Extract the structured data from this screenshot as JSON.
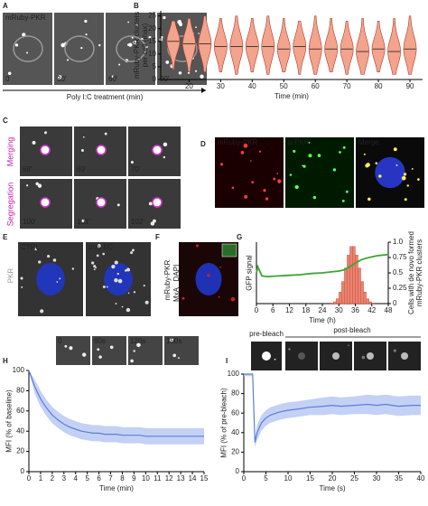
{
  "panels": {
    "a": {
      "label": "A",
      "channel": "mRuby-PKR",
      "times": [
        "0",
        "30'",
        "60'",
        "90'"
      ],
      "caption": "Poly I:C treatment (min)"
    },
    "c": {
      "label": "C",
      "rows": [
        {
          "name": "Merging",
          "times": [
            "68'",
            "69'",
            "70'"
          ]
        },
        {
          "name": "Segregation",
          "times": [
            "100'",
            "101'",
            "102'"
          ]
        }
      ]
    },
    "d": {
      "label": "D",
      "channels": [
        "mRuby-PKR",
        "p-PKR",
        "Merge"
      ]
    },
    "e": {
      "label": "E",
      "conditions": [
        "CTRL",
        "poly I:C"
      ],
      "stain": "PKR"
    },
    "f": {
      "label": "F",
      "channels": [
        "mRuby-PKR",
        "MxA",
        "DAPI"
      ]
    },
    "h": {
      "times": [
        "0",
        "60s",
        "120s",
        "150s"
      ]
    },
    "i": {
      "phases": [
        "pre-bleach",
        "post-bleach"
      ],
      "times": [
        "0",
        "2s",
        "4s",
        "60s"
      ]
    }
  },
  "chart_data": [
    {
      "type": "violin",
      "label": "B",
      "ylabel": "mRuby-PKR clusters per cell (max)",
      "xlabel": "Time (min)",
      "x": [
        15,
        20,
        25,
        30,
        35,
        40,
        45,
        50,
        55,
        60,
        65,
        70,
        75,
        80,
        85,
        90
      ],
      "values": [
        15,
        14,
        14,
        13,
        13,
        13,
        13,
        12,
        13,
        12,
        12,
        12,
        11,
        12,
        11,
        12
      ],
      "mins": [
        4,
        3,
        3,
        3,
        2,
        3,
        2,
        3,
        2,
        2,
        3,
        2,
        2,
        3,
        2,
        2
      ],
      "maxs": [
        23,
        24,
        25,
        24,
        25,
        24,
        25,
        24,
        23,
        25,
        24,
        23,
        24,
        23,
        24,
        25
      ],
      "color": "#f2a48c",
      "xlim": [
        11,
        94
      ],
      "xticks": [
        20,
        30,
        40,
        50,
        60,
        70,
        80,
        90
      ],
      "ylim": [
        0,
        27
      ],
      "yticks": [
        0,
        5,
        10,
        15,
        20,
        25
      ]
    },
    {
      "type": "combo",
      "label": "G",
      "ylabel": "GFP signal",
      "y2label": "Cells with de novo formed mRuby-PKR clusters",
      "xlabel": "Time (h)",
      "hist": {
        "bins": [
          24,
          25,
          26,
          27,
          28,
          29,
          30,
          31,
          32,
          33,
          34,
          35,
          36,
          37,
          38,
          39,
          40,
          41,
          42,
          43,
          44
        ],
        "counts": [
          0,
          0,
          0,
          0.01,
          0.03,
          0.08,
          0.19,
          0.36,
          0.58,
          0.79,
          0.93,
          0.93,
          0.79,
          0.58,
          0.36,
          0.19,
          0.08,
          0.03,
          0.01,
          0
        ],
        "color": "#e8836f",
        "axis": "y2"
      },
      "line": {
        "x": [
          0,
          0.5,
          1,
          2,
          4,
          8,
          12,
          16,
          20,
          24,
          28,
          30,
          32,
          34,
          36,
          38,
          40,
          42,
          44,
          46,
          48
        ],
        "values": [
          0.5,
          0.6,
          0.55,
          0.45,
          0.44,
          0.45,
          0.46,
          0.47,
          0.49,
          0.5,
          0.52,
          0.53,
          0.55,
          0.6,
          0.66,
          0.71,
          0.74,
          0.76,
          0.78,
          0.79,
          0.8
        ],
        "color": "#3aa635"
      },
      "xlim": [
        0,
        48
      ],
      "xticks": [
        0,
        6,
        12,
        18,
        24,
        30,
        36,
        42,
        48
      ],
      "ylim": [
        0,
        1
      ],
      "y2lim": [
        0,
        1
      ],
      "y2ticks": [
        0,
        0.25,
        0.5,
        0.75,
        {
          "value": 1,
          "label": "1.0"
        }
      ]
    },
    {
      "type": "line",
      "label": "H",
      "ylabel": "MFI (% of baseline)",
      "xlabel": "Time (min)",
      "color": "#5b7fd6",
      "band_color": "#b4c6f2",
      "x": [
        0,
        0.5,
        1,
        1.5,
        2,
        2.5,
        3,
        3.5,
        4,
        4.5,
        5,
        5.5,
        6,
        6.5,
        7,
        7.5,
        8,
        8.5,
        9,
        9.5,
        10,
        10.5,
        11,
        11.5,
        12,
        12.5,
        13,
        13.5,
        14,
        14.5,
        15
      ],
      "values": [
        100,
        84,
        72,
        63,
        56,
        51,
        47,
        44,
        42,
        40,
        39,
        38,
        38,
        37,
        37,
        37,
        36,
        36,
        36,
        36,
        35,
        35,
        35,
        35,
        35,
        35,
        35,
        35,
        35,
        35,
        35
      ],
      "lower": [
        100,
        77,
        64,
        55,
        48,
        43,
        39,
        36,
        34,
        32,
        31,
        30,
        30,
        29,
        29,
        29,
        28,
        28,
        28,
        28,
        27,
        27,
        27,
        27,
        27,
        27,
        27,
        27,
        27,
        27,
        27
      ],
      "upper": [
        100,
        91,
        80,
        71,
        64,
        59,
        55,
        52,
        50,
        48,
        47,
        46,
        46,
        45,
        45,
        45,
        44,
        44,
        44,
        44,
        43,
        43,
        43,
        43,
        43,
        43,
        43,
        43,
        43,
        43,
        43
      ],
      "xlim": [
        0,
        15
      ],
      "xticks": [
        0,
        1,
        2,
        3,
        4,
        5,
        6,
        7,
        8,
        9,
        10,
        11,
        12,
        13,
        14,
        15
      ],
      "ylim": [
        0,
        100
      ],
      "yticks": [
        0,
        20,
        40,
        60,
        80,
        100
      ]
    },
    {
      "type": "line",
      "label": "I",
      "ylabel": "MFI (% of pre-bleach)",
      "xlabel": "Time (s)",
      "color": "#5b7fd6",
      "band_color": "#b4c6f2",
      "x": [
        0,
        1,
        2,
        2.5,
        3,
        4,
        5,
        6,
        8,
        10,
        12,
        15,
        18,
        20,
        22,
        25,
        28,
        30,
        32,
        35,
        38,
        40
      ],
      "values": [
        100,
        100,
        100,
        30,
        40,
        50,
        55,
        58,
        61,
        63,
        64,
        66,
        67,
        68,
        67,
        68,
        69,
        68,
        69,
        67,
        68,
        68
      ],
      "lower": [
        98,
        98,
        98,
        25,
        32,
        42,
        47,
        50,
        53,
        55,
        56,
        58,
        58,
        59,
        58,
        59,
        59,
        58,
        59,
        57,
        58,
        58
      ],
      "upper": [
        100,
        100,
        100,
        35,
        48,
        58,
        63,
        66,
        69,
        71,
        72,
        74,
        76,
        77,
        76,
        77,
        79,
        78,
        79,
        77,
        78,
        78
      ],
      "xlim": [
        0,
        40
      ],
      "xticks": [
        0,
        5,
        10,
        15,
        20,
        25,
        30,
        35,
        40
      ],
      "ylim": [
        0,
        100
      ],
      "yticks": [
        0,
        20,
        40,
        60,
        80,
        100
      ]
    }
  ]
}
